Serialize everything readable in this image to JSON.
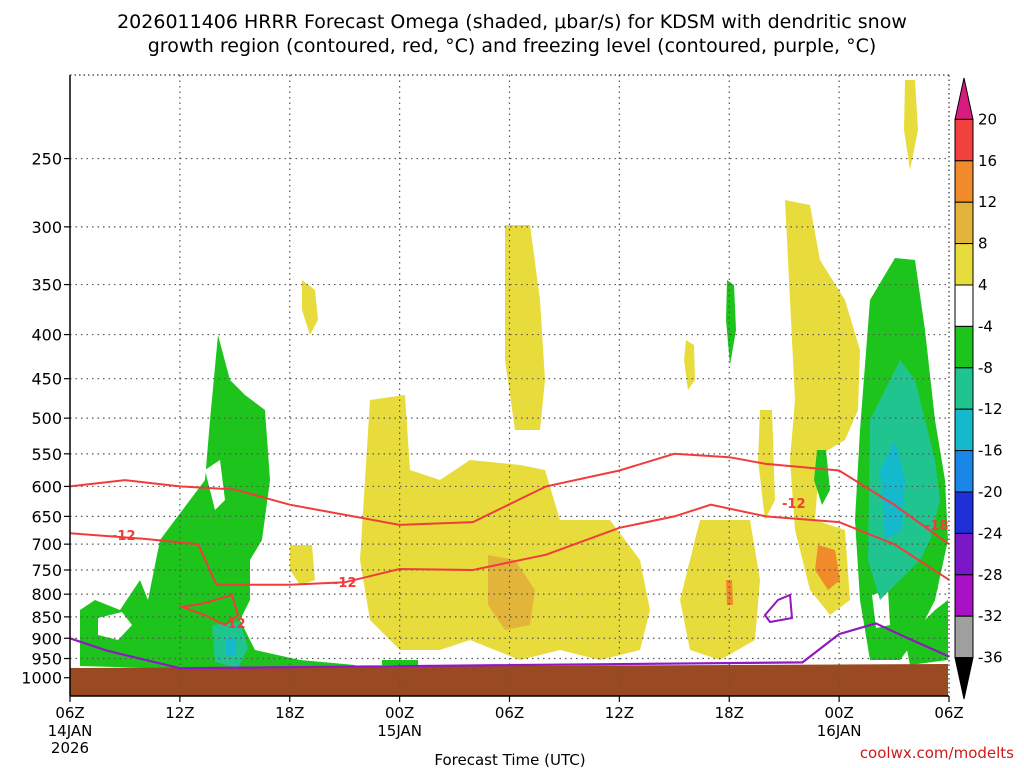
{
  "chart_data": {
    "type": "time-height cross section",
    "title_line1": "2026011406 HRRR Forecast Omega (shaded, μbar/s) for KDSM with dendritic snow",
    "title_line2": "growth region (contoured, red, °C) and freezing level (contoured, purple, °C)",
    "xlabel": "Forecast Time (UTC)",
    "credit": "coolwx.com/modelts",
    "x_range_hours": [
      0,
      48
    ],
    "x_ticks": [
      {
        "hour": 0,
        "label": "06Z",
        "date": "14JAN",
        "year": "2026"
      },
      {
        "hour": 6,
        "label": "12Z",
        "date": "",
        "year": ""
      },
      {
        "hour": 12,
        "label": "18Z",
        "date": "",
        "year": ""
      },
      {
        "hour": 18,
        "label": "00Z",
        "date": "15JAN",
        "year": ""
      },
      {
        "hour": 24,
        "label": "06Z",
        "date": "",
        "year": ""
      },
      {
        "hour": 30,
        "label": "12Z",
        "date": "",
        "year": ""
      },
      {
        "hour": 36,
        "label": "18Z",
        "date": "",
        "year": ""
      },
      {
        "hour": 42,
        "label": "00Z",
        "date": "16JAN",
        "year": ""
      },
      {
        "hour": 48,
        "label": "06Z",
        "date": "",
        "year": ""
      }
    ],
    "y_axis": "pressure (hPa, log scale)",
    "y_range_hpa": [
      1050,
      200
    ],
    "y_ticks": [
      250,
      300,
      350,
      400,
      450,
      500,
      550,
      600,
      650,
      700,
      750,
      800,
      850,
      900,
      950,
      1000
    ],
    "colorbar": {
      "labels": [
        "20",
        "16",
        "12",
        "8",
        "4",
        "-4",
        "-8",
        "-12",
        "-16",
        "-20",
        "-24",
        "-28",
        "-32",
        "-36"
      ],
      "colors": [
        "#d81b7e",
        "#f2403c",
        "#f08a2a",
        "#e3b43a",
        "#e8dc3c",
        "#ffffff",
        "#1cc41c",
        "#20c48e",
        "#14b9cc",
        "#1a86e8",
        "#2030d8",
        "#7a18c8",
        "#a812c4",
        "#a0a0a0",
        "#000000"
      ]
    },
    "contour_labels": [
      "-12",
      "-12",
      "-12",
      "-12",
      "-18"
    ],
    "contour_colors": {
      "dgz": "#f03c3c",
      "freezing": "#9018c0",
      "ground": "#9a4a22"
    },
    "dgz_upper_line": [
      [
        0,
        600
      ],
      [
        3,
        590
      ],
      [
        6,
        600
      ],
      [
        9,
        605
      ],
      [
        12,
        630
      ],
      [
        18,
        665
      ],
      [
        22,
        660
      ],
      [
        26,
        600
      ],
      [
        30,
        575
      ],
      [
        33,
        550
      ],
      [
        36,
        555
      ],
      [
        38,
        565
      ],
      [
        42,
        575
      ],
      [
        45,
        630
      ],
      [
        48,
        700
      ]
    ],
    "dgz_lower_line": [
      [
        0,
        680
      ],
      [
        4,
        690
      ],
      [
        7,
        700
      ],
      [
        8,
        780
      ],
      [
        12,
        780
      ],
      [
        15,
        775
      ],
      [
        18,
        748
      ],
      [
        22,
        750
      ],
      [
        26,
        720
      ],
      [
        30,
        670
      ],
      [
        33,
        650
      ],
      [
        35,
        630
      ],
      [
        38,
        650
      ],
      [
        42,
        660
      ],
      [
        45,
        700
      ],
      [
        48,
        770
      ]
    ],
    "freezing_line": [
      [
        0,
        900
      ],
      [
        2,
        930
      ],
      [
        6,
        975
      ],
      [
        40,
        960
      ],
      [
        42,
        890
      ],
      [
        44,
        865
      ],
      [
        46,
        905
      ],
      [
        48,
        945
      ]
    ]
  }
}
